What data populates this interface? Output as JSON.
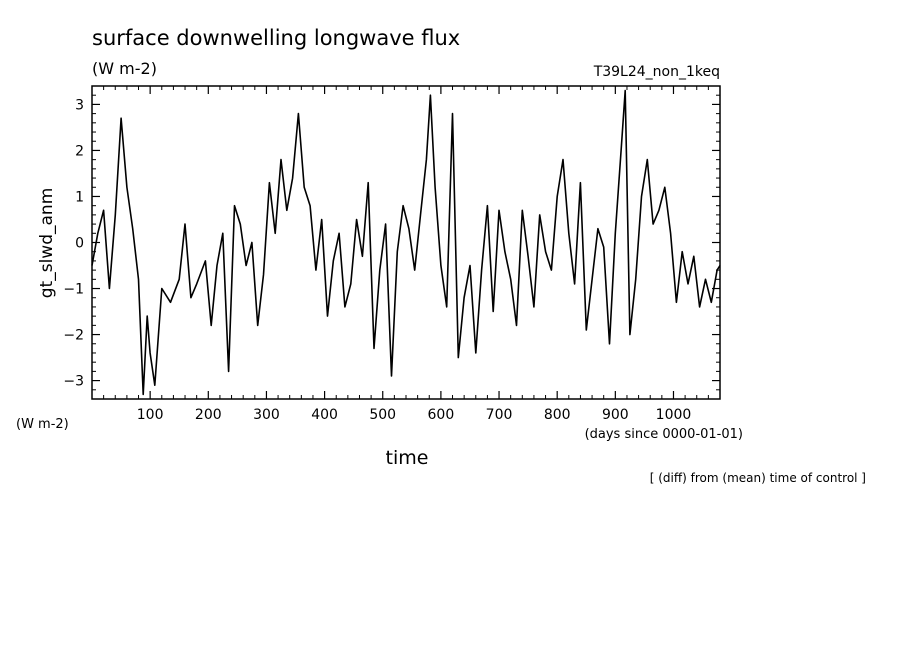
{
  "chart_data": {
    "type": "line",
    "title": "surface downwelling longwave flux",
    "units": "(W m-2)",
    "run_label": "T39L24_non_1keq",
    "ylabel": "gt_slwd_anm",
    "yunits": "(W m-2)",
    "xlabel": "time",
    "xunits": "(days since 0000-01-01)",
    "footnote": "[ (diff) from (mean) time of control ]",
    "xlim": [
      0,
      1080
    ],
    "ylim": [
      -3.4,
      3.4
    ],
    "xticks": [
      100,
      200,
      300,
      400,
      500,
      600,
      700,
      800,
      900,
      1000
    ],
    "yticks": [
      -3,
      -2,
      -1,
      0,
      1,
      2,
      3
    ],
    "grid": false,
    "series": [
      {
        "color": "#000000",
        "x": [
          0,
          10,
          20,
          30,
          40,
          50,
          60,
          70,
          80,
          88,
          95,
          100,
          108,
          120,
          135,
          150,
          160,
          170,
          180,
          195,
          205,
          215,
          225,
          235,
          245,
          255,
          265,
          275,
          285,
          295,
          305,
          315,
          325,
          335,
          345,
          355,
          365,
          375,
          385,
          395,
          405,
          415,
          425,
          435,
          445,
          455,
          465,
          475,
          485,
          495,
          505,
          515,
          525,
          535,
          545,
          555,
          565,
          575,
          582,
          590,
          600,
          610,
          620,
          630,
          640,
          650,
          660,
          670,
          680,
          690,
          700,
          710,
          720,
          730,
          740,
          750,
          760,
          770,
          780,
          790,
          800,
          810,
          820,
          830,
          840,
          850,
          860,
          870,
          880,
          890,
          900,
          910,
          917,
          925,
          935,
          945,
          955,
          965,
          975,
          985,
          995,
          1005,
          1015,
          1025,
          1035,
          1045,
          1055,
          1065,
          1075,
          1080
        ],
        "y": [
          -0.5,
          0.2,
          0.7,
          -1.0,
          0.6,
          2.7,
          1.2,
          0.3,
          -0.8,
          -3.3,
          -1.6,
          -2.4,
          -3.1,
          -1.0,
          -1.3,
          -0.8,
          0.4,
          -1.2,
          -0.9,
          -0.4,
          -1.8,
          -0.5,
          0.2,
          -2.8,
          0.8,
          0.4,
          -0.5,
          0.0,
          -1.8,
          -0.7,
          1.3,
          0.2,
          1.8,
          0.7,
          1.4,
          2.8,
          1.2,
          0.8,
          -0.6,
          0.5,
          -1.6,
          -0.4,
          0.2,
          -1.4,
          -0.9,
          0.5,
          -0.3,
          1.3,
          -2.3,
          -0.6,
          0.4,
          -2.9,
          -0.2,
          0.8,
          0.3,
          -0.6,
          0.6,
          1.8,
          3.2,
          1.2,
          -0.5,
          -1.4,
          2.8,
          -2.5,
          -1.2,
          -0.5,
          -2.4,
          -0.6,
          0.8,
          -1.5,
          0.7,
          -0.2,
          -0.8,
          -1.8,
          0.7,
          -0.3,
          -1.4,
          0.6,
          -0.2,
          -0.6,
          1.0,
          1.8,
          0.2,
          -0.9,
          1.3,
          -1.9,
          -0.8,
          0.3,
          -0.1,
          -2.2,
          0.2,
          2.0,
          3.3,
          -2.0,
          -0.8,
          1.0,
          1.8,
          0.4,
          0.7,
          1.2,
          0.2,
          -1.3,
          -0.2,
          -0.9,
          -0.3,
          -1.4,
          -0.8,
          -1.3,
          -0.6,
          -0.5
        ]
      }
    ]
  }
}
